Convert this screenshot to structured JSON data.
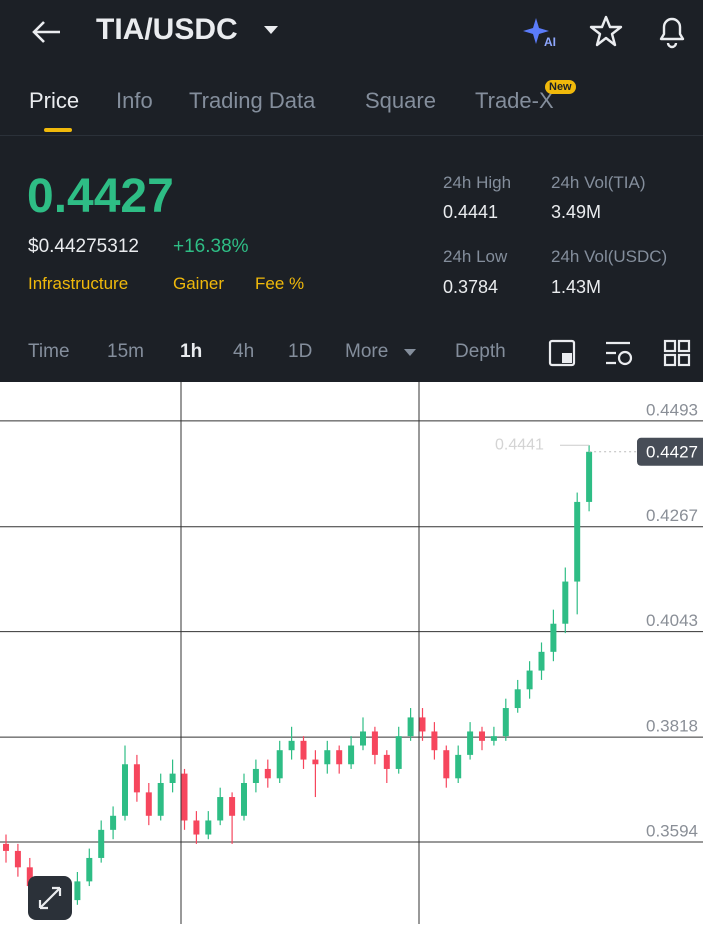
{
  "header": {
    "pair": "TIA/USDC"
  },
  "tabs": [
    "Price",
    "Info",
    "Trading Data",
    "Square",
    "Trade-X"
  ],
  "new_badge": "New",
  "price": {
    "last": "0.4427",
    "usd": "$0.44275312",
    "change": "+16.38%",
    "tags": [
      "Infrastructure",
      "Gainer",
      "Fee %"
    ]
  },
  "stats": [
    {
      "label": "24h High",
      "value": "0.4441"
    },
    {
      "label": "24h Vol(TIA)",
      "value": "3.49M"
    },
    {
      "label": "24h Low",
      "value": "0.3784"
    },
    {
      "label": "24h Vol(USDC)",
      "value": "1.43M"
    }
  ],
  "intervals": [
    "Time",
    "15m",
    "1h",
    "4h",
    "1D"
  ],
  "more": "More",
  "depth": "Depth",
  "chart_data": {
    "type": "candlestick",
    "up_color": "#2ebd85",
    "down_color": "#f6465d",
    "ylim": [
      0.3419,
      0.4576
    ],
    "yticks": [
      0.3594,
      0.3818,
      0.4043,
      0.4267,
      0.4493
    ],
    "grid": true,
    "last_price": 0.4427,
    "high_marker": 0.4441,
    "candles": [
      [
        0.359,
        0.361,
        0.355,
        0.3575
      ],
      [
        0.3575,
        0.359,
        0.352,
        0.354
      ],
      [
        0.354,
        0.356,
        0.348,
        0.35
      ],
      [
        0.35,
        0.352,
        0.343,
        0.346
      ],
      [
        0.346,
        0.351,
        0.344,
        0.349
      ],
      [
        0.349,
        0.351,
        0.345,
        0.347
      ],
      [
        0.347,
        0.353,
        0.346,
        0.351
      ],
      [
        0.351,
        0.358,
        0.35,
        0.356
      ],
      [
        0.356,
        0.364,
        0.355,
        0.362
      ],
      [
        0.362,
        0.367,
        0.36,
        0.365
      ],
      [
        0.365,
        0.38,
        0.364,
        0.376
      ],
      [
        0.376,
        0.378,
        0.368,
        0.37
      ],
      [
        0.37,
        0.372,
        0.363,
        0.365
      ],
      [
        0.365,
        0.374,
        0.364,
        0.372
      ],
      [
        0.372,
        0.377,
        0.37,
        0.374
      ],
      [
        0.374,
        0.375,
        0.362,
        0.364
      ],
      [
        0.364,
        0.366,
        0.359,
        0.361
      ],
      [
        0.361,
        0.366,
        0.36,
        0.364
      ],
      [
        0.364,
        0.371,
        0.363,
        0.369
      ],
      [
        0.369,
        0.37,
        0.359,
        0.365
      ],
      [
        0.365,
        0.374,
        0.364,
        0.372
      ],
      [
        0.372,
        0.377,
        0.37,
        0.375
      ],
      [
        0.375,
        0.377,
        0.371,
        0.373
      ],
      [
        0.373,
        0.381,
        0.372,
        0.379
      ],
      [
        0.379,
        0.384,
        0.377,
        0.381
      ],
      [
        0.381,
        0.382,
        0.375,
        0.377
      ],
      [
        0.377,
        0.379,
        0.369,
        0.376
      ],
      [
        0.376,
        0.381,
        0.374,
        0.379
      ],
      [
        0.379,
        0.38,
        0.374,
        0.376
      ],
      [
        0.376,
        0.382,
        0.375,
        0.38
      ],
      [
        0.38,
        0.386,
        0.379,
        0.383
      ],
      [
        0.383,
        0.384,
        0.376,
        0.378
      ],
      [
        0.378,
        0.379,
        0.372,
        0.375
      ],
      [
        0.375,
        0.384,
        0.374,
        0.382
      ],
      [
        0.382,
        0.388,
        0.381,
        0.386
      ],
      [
        0.386,
        0.388,
        0.381,
        0.383
      ],
      [
        0.383,
        0.385,
        0.377,
        0.379
      ],
      [
        0.379,
        0.38,
        0.371,
        0.373
      ],
      [
        0.373,
        0.38,
        0.372,
        0.378
      ],
      [
        0.378,
        0.385,
        0.377,
        0.383
      ],
      [
        0.383,
        0.384,
        0.379,
        0.381
      ],
      [
        0.381,
        0.384,
        0.38,
        0.382
      ],
      [
        0.382,
        0.39,
        0.381,
        0.388
      ],
      [
        0.388,
        0.394,
        0.387,
        0.392
      ],
      [
        0.392,
        0.398,
        0.39,
        0.396
      ],
      [
        0.396,
        0.402,
        0.394,
        0.4
      ],
      [
        0.4,
        0.409,
        0.398,
        0.406
      ],
      [
        0.406,
        0.418,
        0.404,
        0.415
      ],
      [
        0.415,
        0.434,
        0.408,
        0.432
      ],
      [
        0.432,
        0.4441,
        0.43,
        0.4427
      ]
    ]
  }
}
